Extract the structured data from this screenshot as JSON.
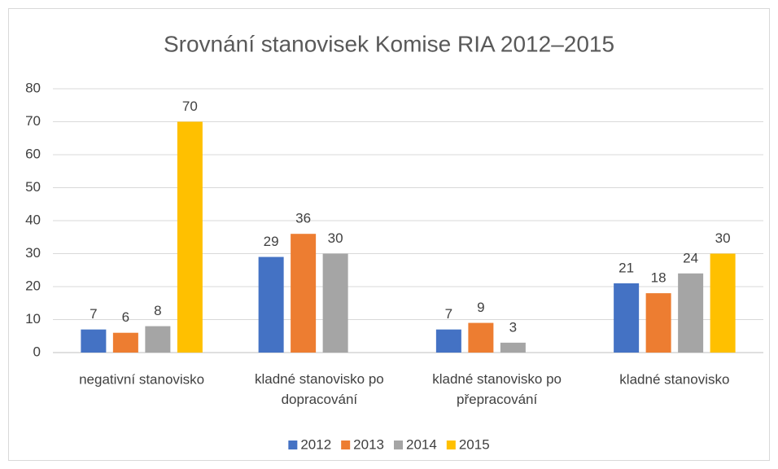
{
  "chart_data": {
    "type": "bar",
    "title": "Srovnání stanovisek Komise RIA 2012–2015",
    "categories": [
      "negativní stanovisko",
      "kladné stanovisko po dopracování",
      "kladné stanovisko po přepracování",
      "kladné stanovisko"
    ],
    "series": [
      {
        "name": "2012",
        "color": "#4472c4",
        "values": [
          7,
          29,
          7,
          21
        ]
      },
      {
        "name": "2013",
        "color": "#ed7d31",
        "values": [
          6,
          36,
          9,
          18
        ]
      },
      {
        "name": "2014",
        "color": "#a5a5a5",
        "values": [
          8,
          30,
          3,
          24
        ]
      },
      {
        "name": "2015",
        "color": "#ffc000",
        "values": [
          70,
          null,
          null,
          30
        ]
      }
    ],
    "ylim": [
      0,
      80
    ],
    "yticks": [
      0,
      10,
      20,
      30,
      40,
      50,
      60,
      70,
      80
    ],
    "grid": true,
    "legend": "bottom"
  }
}
